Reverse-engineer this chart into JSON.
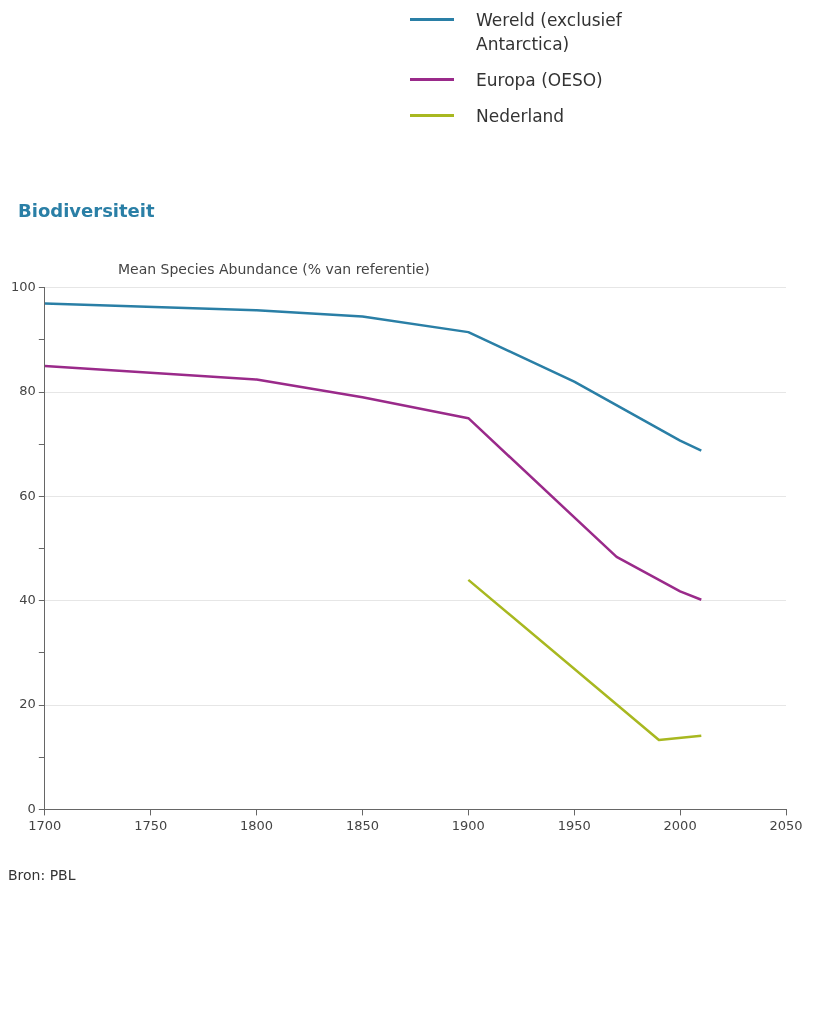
{
  "chart_data": {
    "type": "line",
    "title": "Biodiversiteit",
    "ylabel": "Mean Species Abundance (% van referentie)",
    "legend": "top right",
    "grid": "y",
    "marker": "none",
    "line_style": "solid",
    "xlim": [
      1700,
      2050
    ],
    "xticks": [
      1700,
      1750,
      1800,
      1850,
      1900,
      1950,
      2000,
      2050
    ],
    "ylim": [
      0,
      100
    ],
    "yticks": [
      0,
      {
        "value": 10,
        "label": null
      },
      20,
      {
        "value": 30,
        "label": null
      },
      40,
      {
        "value": 50,
        "label": null
      },
      60,
      {
        "value": 70,
        "label": null
      },
      80,
      {
        "value": 90,
        "label": null
      },
      100
    ],
    "series": [
      {
        "name": "Wereld (exclusief Antarctica)",
        "color": "#2a7fa6",
        "x": [
          1700,
          1800,
          1850,
          1900,
          1950,
          2000,
          2010
        ],
        "values": [
          97,
          95.7,
          94.5,
          91.5,
          82,
          70.7,
          68.8
        ]
      },
      {
        "name": "Europa (OESO)",
        "color": "#9a2a8a",
        "x": [
          1700,
          1800,
          1850,
          1900,
          1970,
          2000,
          2010
        ],
        "values": [
          85,
          82.4,
          79,
          75,
          48.4,
          41.8,
          40.2
        ]
      },
      {
        "name": "Nederland",
        "color": "#a8b820",
        "x": [
          1900,
          1990,
          2010
        ],
        "values": [
          44,
          13.3,
          14.1
        ]
      }
    ],
    "annotations": [
      "Bron: PBL"
    ]
  }
}
